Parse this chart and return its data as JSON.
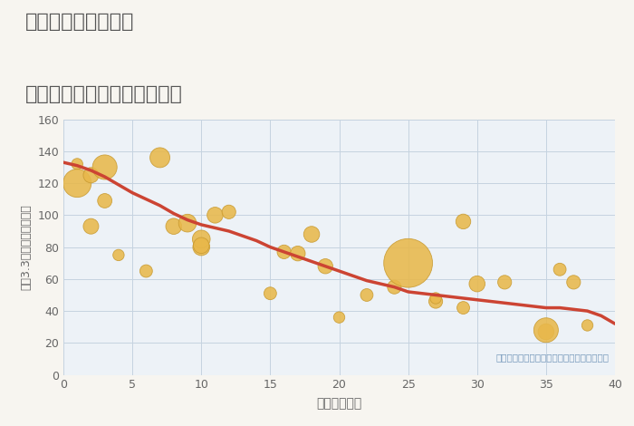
{
  "title_line1": "奈良県奈良市丸山の",
  "title_line2": "築年数別中古マンション価格",
  "xlabel": "築年数（年）",
  "ylabel": "坪（3.3㎡）単価（万円）",
  "annotation": "円の大きさは、取引のあった物件面積を示す",
  "bg_color": "#f7f5f0",
  "plot_bg_color": "#edf2f7",
  "grid_color": "#c5d3e0",
  "bubble_color": "#e8b84b",
  "bubble_edge_color": "#c89a30",
  "line_color": "#cc4433",
  "title_color": "#555555",
  "axis_color": "#666666",
  "annotation_color": "#7799bb",
  "xlim": [
    0,
    40
  ],
  "ylim": [
    0,
    160
  ],
  "xticks": [
    0,
    5,
    10,
    15,
    20,
    25,
    30,
    35,
    40
  ],
  "yticks": [
    0,
    20,
    40,
    60,
    80,
    100,
    120,
    140,
    160
  ],
  "scatter_x": [
    1,
    1,
    2,
    2,
    3,
    3,
    4,
    6,
    7,
    8,
    9,
    10,
    10,
    10,
    11,
    12,
    15,
    16,
    17,
    18,
    19,
    20,
    22,
    24,
    25,
    27,
    27,
    29,
    29,
    30,
    32,
    35,
    35,
    36,
    37,
    38
  ],
  "scatter_y": [
    132,
    120,
    93,
    125,
    109,
    130,
    75,
    65,
    136,
    93,
    95,
    80,
    85,
    81,
    100,
    102,
    51,
    77,
    76,
    88,
    68,
    36,
    50,
    55,
    70,
    46,
    48,
    42,
    96,
    57,
    58,
    27,
    28,
    66,
    58,
    31
  ],
  "scatter_size": [
    80,
    500,
    150,
    150,
    130,
    380,
    80,
    100,
    250,
    160,
    200,
    180,
    200,
    160,
    160,
    120,
    100,
    120,
    140,
    160,
    140,
    80,
    100,
    120,
    1500,
    120,
    80,
    100,
    140,
    160,
    120,
    160,
    380,
    100,
    120,
    80
  ],
  "line_x": [
    0,
    1,
    2,
    3,
    4,
    5,
    6,
    7,
    8,
    9,
    10,
    11,
    12,
    13,
    14,
    15,
    16,
    17,
    18,
    19,
    20,
    21,
    22,
    23,
    24,
    25,
    26,
    27,
    28,
    29,
    30,
    31,
    32,
    33,
    34,
    35,
    36,
    37,
    38,
    39,
    40
  ],
  "line_y": [
    133,
    131,
    128,
    124,
    119,
    114,
    110,
    106,
    101,
    97,
    94,
    92,
    90,
    87,
    84,
    80,
    77,
    74,
    71,
    68,
    65,
    62,
    59,
    57,
    55,
    52,
    51,
    50,
    49,
    48,
    47,
    46,
    45,
    44,
    43,
    42,
    42,
    41,
    40,
    37,
    32
  ]
}
